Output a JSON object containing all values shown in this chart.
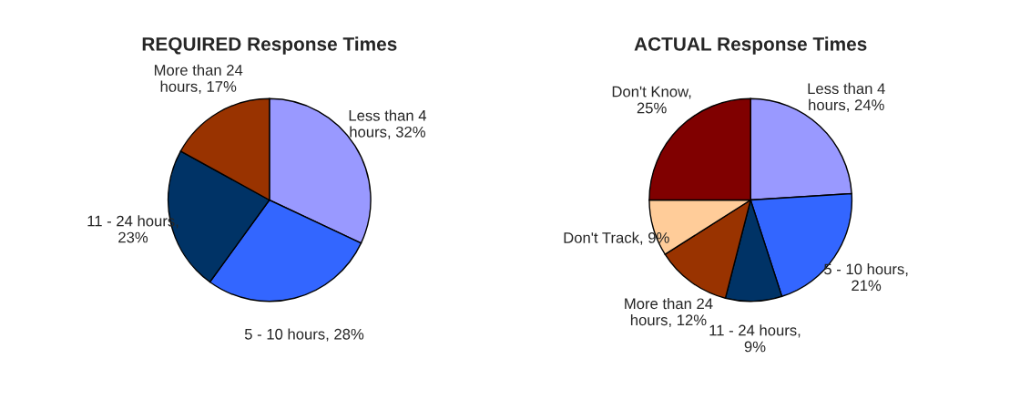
{
  "chart_data": [
    {
      "type": "pie",
      "title": "REQUIRED Response Times",
      "categories": [
        "Less than 4\nhours, 32%",
        "5 - 10 hours, 28%",
        "11 - 24 hours,\n23%",
        "More than 24\nhours, 17%"
      ],
      "values": [
        32,
        28,
        23,
        17
      ],
      "colors": [
        "#9999ff",
        "#3366ff",
        "#003366",
        "#993300"
      ]
    },
    {
      "type": "pie",
      "title": "ACTUAL Response Times",
      "categories": [
        "Less than 4\nhours, 24%",
        "5 - 10 hours,\n21%",
        "11 - 24 hours,\n9%",
        "More than 24\nhours, 12%",
        "Don't Track, 9%",
        "Don't Know,\n25%"
      ],
      "values": [
        24,
        21,
        9,
        12,
        9,
        25
      ],
      "colors": [
        "#9999ff",
        "#3366ff",
        "#003366",
        "#993300",
        "#ffcc99",
        "#800000"
      ]
    }
  ]
}
